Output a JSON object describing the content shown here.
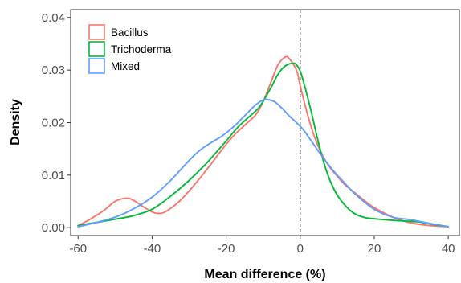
{
  "chart_data": {
    "type": "line",
    "subtype": "density",
    "xlabel": "Mean difference (%)",
    "ylabel": "Density",
    "xlim": [
      -62,
      43
    ],
    "ylim": [
      -0.0015,
      0.0415
    ],
    "xticks": [
      -60,
      -40,
      -20,
      0,
      20,
      40
    ],
    "xtick_labels": [
      "-60",
      "-40",
      "-20",
      "0",
      "20",
      "40"
    ],
    "yticks": [
      0.0,
      0.01,
      0.02,
      0.03,
      0.04
    ],
    "ytick_labels": [
      "0.00",
      "0.01",
      "0.02",
      "0.03",
      "0.04"
    ],
    "grid": false,
    "legend_position": "top-left",
    "reference_line": {
      "x": 0,
      "style": "dashed",
      "color": "#000000"
    },
    "series": [
      {
        "name": "Bacillus",
        "color": "#F8766D",
        "points": [
          [
            -60,
            0.0004
          ],
          [
            -57,
            0.0015
          ],
          [
            -53,
            0.0033
          ],
          [
            -50,
            0.005
          ],
          [
            -47,
            0.0056
          ],
          [
            -45,
            0.0052
          ],
          [
            -42,
            0.0038
          ],
          [
            -40,
            0.003
          ],
          [
            -38,
            0.0027
          ],
          [
            -36,
            0.0032
          ],
          [
            -33,
            0.0048
          ],
          [
            -30,
            0.007
          ],
          [
            -27,
            0.0095
          ],
          [
            -24,
            0.0122
          ],
          [
            -21,
            0.015
          ],
          [
            -18,
            0.0175
          ],
          [
            -15,
            0.0195
          ],
          [
            -12,
            0.0215
          ],
          [
            -10,
            0.024
          ],
          [
            -8,
            0.0275
          ],
          [
            -6,
            0.031
          ],
          [
            -4,
            0.0325
          ],
          [
            -3,
            0.0322
          ],
          [
            -1,
            0.03
          ],
          [
            0,
            0.027
          ],
          [
            2,
            0.0215
          ],
          [
            4,
            0.017
          ],
          [
            6,
            0.0138
          ],
          [
            8,
            0.0115
          ],
          [
            10,
            0.0098
          ],
          [
            12,
            0.0082
          ],
          [
            15,
            0.0065
          ],
          [
            18,
            0.0048
          ],
          [
            20,
            0.0038
          ],
          [
            25,
            0.002
          ],
          [
            30,
            0.0009
          ],
          [
            35,
            0.0004
          ],
          [
            40,
            0.0002
          ]
        ]
      },
      {
        "name": "Trichoderma",
        "color": "#00BA38",
        "points": [
          [
            -60,
            0.0004
          ],
          [
            -55,
            0.001
          ],
          [
            -50,
            0.0016
          ],
          [
            -45,
            0.0023
          ],
          [
            -40,
            0.0035
          ],
          [
            -35,
            0.006
          ],
          [
            -30,
            0.009
          ],
          [
            -25,
            0.0125
          ],
          [
            -20,
            0.0165
          ],
          [
            -17,
            0.019
          ],
          [
            -14,
            0.021
          ],
          [
            -11,
            0.023
          ],
          [
            -8,
            0.0265
          ],
          [
            -6,
            0.0292
          ],
          [
            -4,
            0.0308
          ],
          [
            -2,
            0.0313
          ],
          [
            -1,
            0.031
          ],
          [
            0,
            0.0298
          ],
          [
            1,
            0.0275
          ],
          [
            3,
            0.022
          ],
          [
            5,
            0.016
          ],
          [
            7,
            0.011
          ],
          [
            9,
            0.0075
          ],
          [
            11,
            0.0052
          ],
          [
            14,
            0.003
          ],
          [
            17,
            0.002
          ],
          [
            20,
            0.0017
          ],
          [
            25,
            0.0014
          ],
          [
            30,
            0.0012
          ],
          [
            33,
            0.001
          ],
          [
            36,
            0.0006
          ],
          [
            40,
            0.0002
          ]
        ]
      },
      {
        "name": "Mixed",
        "color": "#619CFF",
        "points": [
          [
            -60,
            0.0002
          ],
          [
            -55,
            0.001
          ],
          [
            -50,
            0.002
          ],
          [
            -45,
            0.0036
          ],
          [
            -40,
            0.0058
          ],
          [
            -35,
            0.009
          ],
          [
            -30,
            0.0128
          ],
          [
            -27,
            0.0148
          ],
          [
            -24,
            0.0162
          ],
          [
            -21,
            0.0175
          ],
          [
            -18,
            0.0192
          ],
          [
            -15,
            0.0213
          ],
          [
            -12,
            0.0234
          ],
          [
            -10,
            0.0243
          ],
          [
            -9,
            0.0244
          ],
          [
            -7,
            0.024
          ],
          [
            -5,
            0.0228
          ],
          [
            -3,
            0.0213
          ],
          [
            -1,
            0.02
          ],
          [
            1,
            0.0185
          ],
          [
            3,
            0.0165
          ],
          [
            6,
            0.0135
          ],
          [
            9,
            0.0108
          ],
          [
            12,
            0.0085
          ],
          [
            15,
            0.0063
          ],
          [
            20,
            0.0035
          ],
          [
            25,
            0.002
          ],
          [
            30,
            0.0015
          ],
          [
            35,
            0.0008
          ],
          [
            40,
            0.0002
          ]
        ]
      }
    ]
  }
}
